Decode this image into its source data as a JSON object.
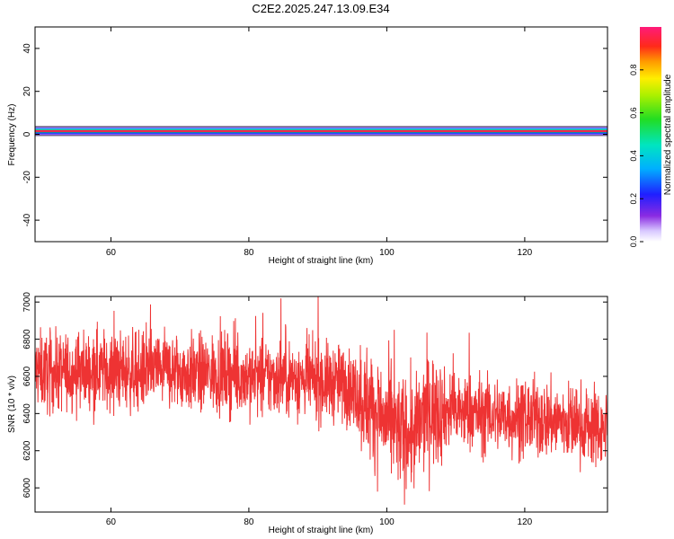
{
  "title": "C2E2.2025.247.13.09.E34",
  "colors": {
    "snr_line": "#ee3333",
    "band_core": "#ff1a4e",
    "band_edge": "#b070ff"
  },
  "chart_data": [
    {
      "type": "heatmap",
      "xlabel": "Height of straight line (km)",
      "ylabel": "Frequency (Hz)",
      "xlim": [
        49,
        132
      ],
      "ylim": [
        -50,
        50
      ],
      "xticks": [
        60,
        80,
        100,
        120
      ],
      "yticks": [
        40,
        20,
        0,
        -20,
        -40
      ],
      "band_center_hz": 1.5,
      "band_halfwidth_hz": 2.5,
      "band_x_range": [
        49,
        132
      ],
      "colorbar": {
        "label": "Normalized spectral amplitude",
        "range": [
          0,
          1
        ],
        "ticks": [
          0.0,
          0.2,
          0.4,
          0.6,
          0.8
        ]
      }
    },
    {
      "type": "line",
      "xlabel": "Height of straight line (km)",
      "ylabel": "SNR (10 * v/v)",
      "xlim": [
        49,
        132
      ],
      "ylim": [
        5870,
        7030
      ],
      "xticks": [
        60,
        80,
        100,
        120
      ],
      "yticks": [
        6000,
        6200,
        6400,
        6600,
        6800,
        7000
      ],
      "series": [
        {
          "x": [
            49,
            52,
            55,
            58,
            61,
            64,
            67,
            70,
            73,
            76,
            79,
            82,
            85,
            88,
            91,
            94,
            96,
            98,
            100,
            102,
            104,
            106,
            108,
            110,
            113,
            116,
            119,
            122,
            125,
            128,
            131,
            132
          ],
          "values": [
            6630,
            6620,
            6630,
            6640,
            6630,
            6620,
            6640,
            6620,
            6610,
            6620,
            6600,
            6590,
            6600,
            6580,
            6570,
            6560,
            6500,
            6430,
            6350,
            6300,
            6280,
            6430,
            6420,
            6410,
            6400,
            6390,
            6380,
            6370,
            6360,
            6340,
            6320,
            6310
          ]
        }
      ]
    }
  ]
}
